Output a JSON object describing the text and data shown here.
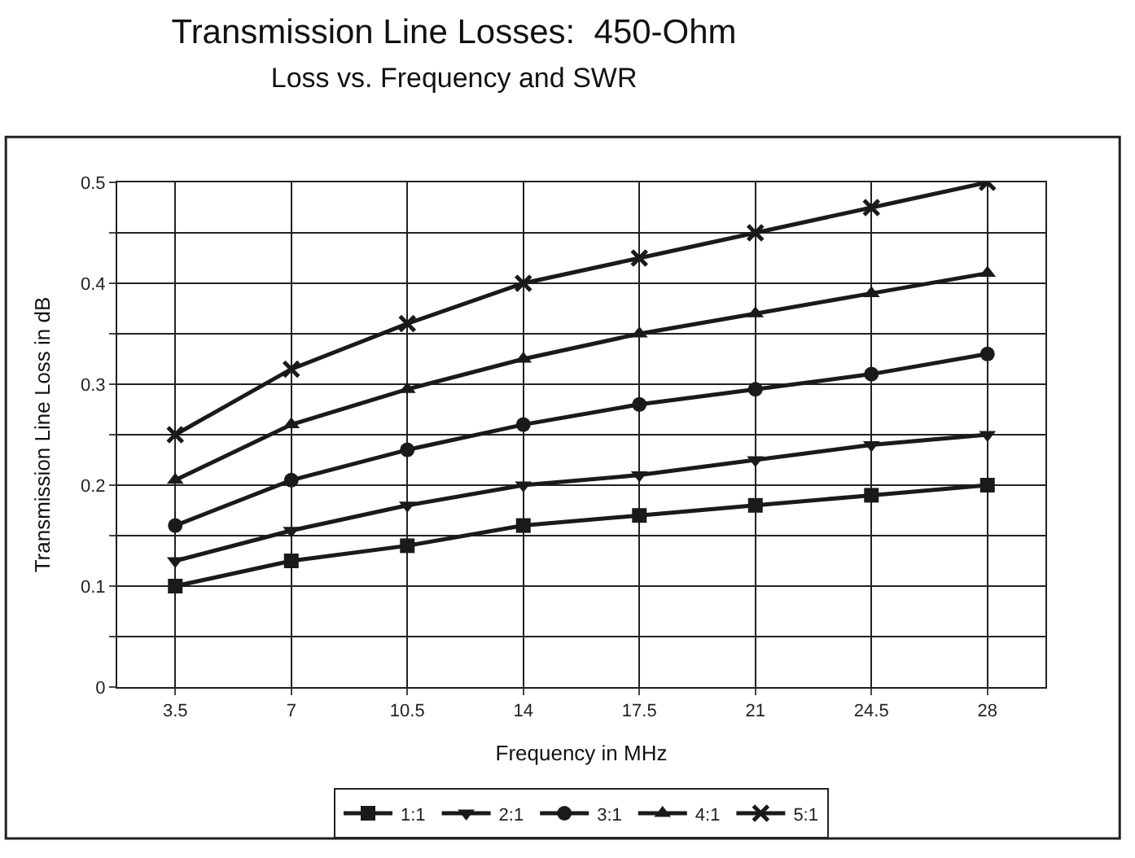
{
  "chart_data": {
    "type": "line",
    "title": "Transmission Line Losses:  450-Ohm",
    "subtitle": "Loss vs. Frequency and SWR",
    "xlabel": "Frequency in MHz",
    "ylabel": "Transmission Line Loss in dB",
    "categories": [
      "3.5",
      "7",
      "10.5",
      "14",
      "17.5",
      "21",
      "24.5",
      "28"
    ],
    "series": [
      {
        "name": "1:1",
        "color": "#1a1a1a",
        "marker": "square",
        "values": [
          0.1,
          0.125,
          0.14,
          0.16,
          0.17,
          0.18,
          0.19,
          0.2
        ]
      },
      {
        "name": "2:1",
        "color": "#1a1a1a",
        "marker": "triangle-down",
        "values": [
          0.125,
          0.155,
          0.18,
          0.2,
          0.21,
          0.225,
          0.24,
          0.25
        ]
      },
      {
        "name": "3:1",
        "color": "#1a1a1a",
        "marker": "circle",
        "values": [
          0.16,
          0.205,
          0.235,
          0.26,
          0.28,
          0.295,
          0.31,
          0.33
        ]
      },
      {
        "name": "4:1",
        "color": "#1a1a1a",
        "marker": "triangle",
        "values": [
          0.205,
          0.26,
          0.295,
          0.325,
          0.35,
          0.37,
          0.39,
          0.41
        ]
      },
      {
        "name": "5:1",
        "color": "#1a1a1a",
        "marker": "cross",
        "values": [
          0.25,
          0.315,
          0.36,
          0.4,
          0.425,
          0.45,
          0.475,
          0.5
        ]
      }
    ],
    "ylim": [
      0,
      0.5
    ],
    "yticks": [
      0,
      {
        "value": 0.05,
        "label": null
      },
      0.1,
      {
        "value": 0.15,
        "label": null
      },
      0.2,
      {
        "value": 0.25,
        "label": null
      },
      0.3,
      {
        "value": 0.35,
        "label": null
      },
      0.4,
      {
        "value": 0.45,
        "label": null
      },
      0.5
    ],
    "grid": true,
    "legend": "bottom",
    "line_style": "solid"
  }
}
